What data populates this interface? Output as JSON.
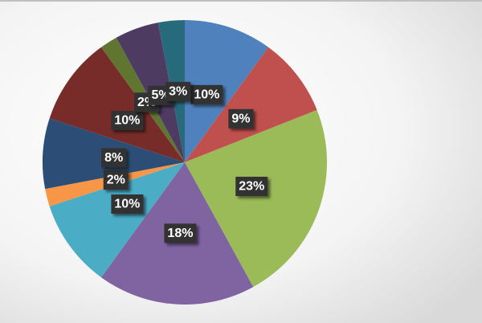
{
  "chart_data": {
    "type": "pie",
    "values": [
      10,
      9,
      23,
      18,
      10,
      2,
      8,
      10,
      2,
      5,
      3
    ],
    "value_labels": [
      "10%",
      "9%",
      "23%",
      "18%",
      "10%",
      "2%",
      "8%",
      "10%",
      "2%",
      "5%",
      "3%"
    ],
    "colors": [
      "#4f81bd",
      "#c0504d",
      "#9bbb59",
      "#8064a2",
      "#4bacc6",
      "#f79646",
      "#2c4d75",
      "#772c2a",
      "#5f7530",
      "#4d3b62",
      "#276a7c"
    ]
  }
}
